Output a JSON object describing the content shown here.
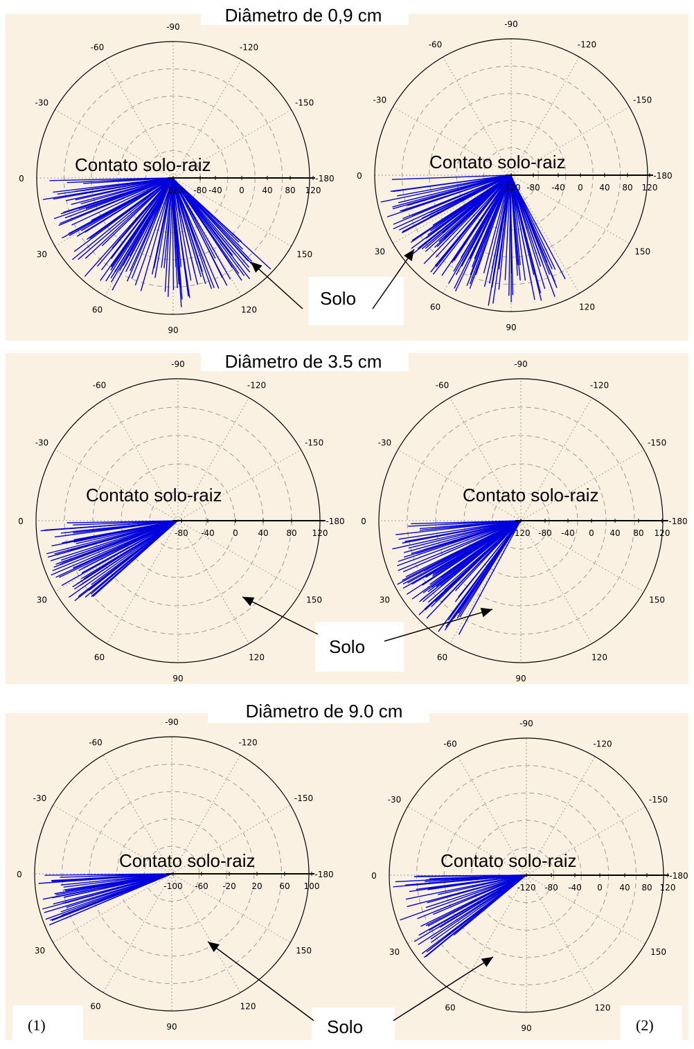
{
  "panel_labels": [
    "(1)",
    "(2)"
  ],
  "annotation_solo": "Solo",
  "chart_data": [
    {
      "type": "polar-vector",
      "title": "Diâmetro de 0,9 cm",
      "panel": "(1)",
      "annotation": "Contato solo-raiz",
      "angle_tick_labels": [
        "0",
        "-30",
        "-60",
        "-90",
        "-120",
        "-150",
        "-180",
        "150",
        "120",
        "90",
        "60",
        "30"
      ],
      "radial_tick_labels": [
        "-120",
        "-80",
        "-40",
        "0",
        "40",
        "80",
        "120"
      ],
      "radial_range": [
        -120,
        120
      ],
      "grid": true,
      "line_color": "#0000dd",
      "vectors": {
        "count": 110,
        "angle_range_deg": [
          0,
          138
        ],
        "radius_range": [
          40,
          120
        ]
      }
    },
    {
      "type": "polar-vector",
      "title": "",
      "panel": "(2)",
      "annotation": "Contato solo-raiz",
      "angle_tick_labels": [
        "0",
        "-30",
        "-60",
        "-90",
        "-120",
        "-150",
        "-180",
        "150",
        "120",
        "90",
        "60",
        "30"
      ],
      "radial_tick_labels": [
        "-120",
        "-80",
        "-40",
        "0",
        "40",
        "80",
        "120"
      ],
      "radial_range": [
        -120,
        120
      ],
      "grid": true,
      "line_color": "#0000dd",
      "vectors": {
        "count": 110,
        "angle_range_deg": [
          0,
          118
        ],
        "radius_range": [
          40,
          120
        ]
      }
    },
    {
      "type": "polar-vector",
      "title": "Diâmetro de 3.5 cm",
      "panel": "(1)",
      "annotation": "Contato solo-raiz",
      "angle_tick_labels": [
        "0",
        "-30",
        "-60",
        "-90",
        "-120",
        "-150",
        "-180",
        "150",
        "120",
        "90",
        "60",
        "30"
      ],
      "radial_tick_labels": [
        "-80",
        "-40",
        "0",
        "40",
        "80",
        "120"
      ],
      "radial_range": [
        -120,
        120
      ],
      "grid": true,
      "line_color": "#0000dd",
      "vectors": {
        "count": 55,
        "angle_range_deg": [
          0,
          42
        ],
        "radius_range": [
          60,
          120
        ]
      }
    },
    {
      "type": "polar-vector",
      "title": "",
      "panel": "(2)",
      "annotation": "Contato solo-raiz",
      "angle_tick_labels": [
        "0",
        "-30",
        "-60",
        "-90",
        "-120",
        "-150",
        "-180",
        "150",
        "120",
        "90",
        "60",
        "30"
      ],
      "radial_tick_labels": [
        "-120",
        "-80",
        "-40",
        "0",
        "40",
        "80",
        "120"
      ],
      "radial_range": [
        -120,
        120
      ],
      "grid": true,
      "line_color": "#0000dd",
      "vectors": {
        "count": 70,
        "angle_range_deg": [
          0,
          62
        ],
        "radius_range": [
          40,
          120
        ]
      }
    },
    {
      "type": "polar-vector",
      "title": "Diâmetro de 9.0 cm",
      "panel": "(1)",
      "annotation": "Contato solo-raiz",
      "angle_tick_labels": [
        "0",
        "-30",
        "-60",
        "-90",
        "-120",
        "-150",
        "-180",
        "150",
        "120",
        "90",
        "60",
        "30"
      ],
      "radial_tick_labels": [
        "-100",
        "-60",
        "-20",
        "20",
        "60",
        "100"
      ],
      "radial_range": [
        -100,
        100
      ],
      "grid": true,
      "line_color": "#0000dd",
      "vectors": {
        "count": 30,
        "angle_range_deg": [
          0,
          25
        ],
        "radius_range": [
          60,
          100
        ]
      }
    },
    {
      "type": "polar-vector",
      "title": "",
      "panel": "(2)",
      "annotation": "Contato solo-raiz",
      "angle_tick_labels": [
        "0",
        "-30",
        "-60",
        "-90",
        "-120",
        "-150",
        "-180",
        "150",
        "120",
        "90",
        "60",
        "30"
      ],
      "radial_tick_labels": [
        "-120",
        "-80",
        "-40",
        "0",
        "40",
        "80",
        "120"
      ],
      "radial_range": [
        -120,
        120
      ],
      "grid": true,
      "line_color": "#0000dd",
      "vectors": {
        "count": 45,
        "angle_range_deg": [
          0,
          42
        ],
        "radius_range": [
          40,
          120
        ]
      }
    }
  ]
}
